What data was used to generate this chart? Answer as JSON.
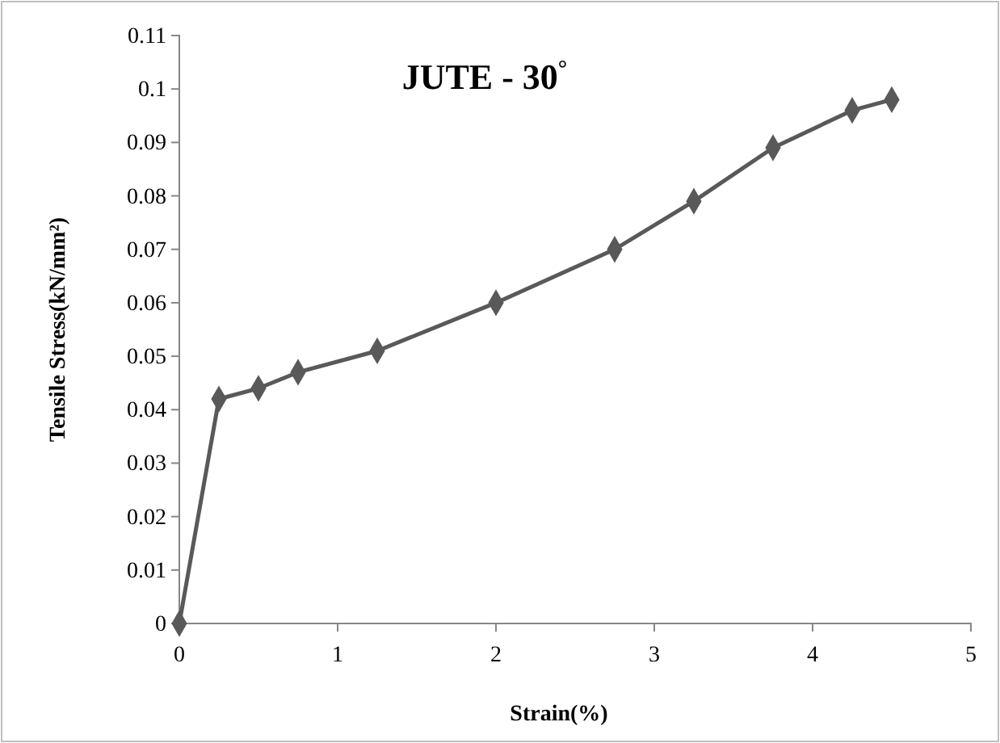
{
  "chart_data": {
    "type": "line",
    "title": "JUTE - 30$^{°}$",
    "xlabel": "Strain(%)",
    "ylabel": "Tensile Stress(kN/mm²)",
    "x": [
      0,
      0.25,
      0.5,
      0.75,
      1.25,
      2,
      2.75,
      3.25,
      3.75,
      4.25,
      4.5
    ],
    "series": [
      {
        "color": "#595959",
        "values": [
          0,
          0.042,
          0.044,
          0.047,
          0.051,
          0.06,
          0.07,
          0.079,
          0.089,
          0.096,
          0.098
        ]
      }
    ],
    "xlim": [
      0,
      5
    ],
    "xticks": [
      0,
      1,
      2,
      3,
      4,
      5
    ],
    "ylim": [
      0,
      0.11
    ],
    "yticks": [
      0,
      0.01,
      0.02,
      0.03,
      0.04,
      0.05,
      0.06,
      0.07,
      0.08,
      0.09,
      0.1,
      0.11
    ],
    "grid": false,
    "marker": "diamond",
    "line_style": "solid"
  }
}
